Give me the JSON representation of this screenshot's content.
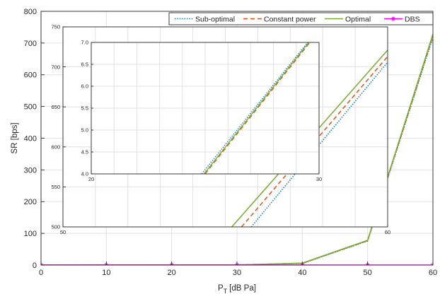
{
  "chart_data": [
    {
      "type": "line",
      "xlabel": "P",
      "xlabel_sub": "T",
      "xlabel_unit": "[dB Pa]",
      "ylabel": "SR [bps]",
      "xlim": [
        0,
        60
      ],
      "ylim": [
        0,
        800
      ],
      "xticks": [
        0,
        10,
        20,
        30,
        40,
        50,
        60
      ],
      "yticks": [
        0,
        100,
        200,
        300,
        400,
        500,
        600,
        700,
        800
      ],
      "grid": true,
      "legend_position": "top (single row)",
      "legend": [
        "Sub-optimal",
        "Constant power",
        "Optimal",
        "DBS"
      ],
      "series": [
        {
          "name": "Sub-optimal",
          "color": "#0072BD",
          "style": "dotted",
          "x": [
            0,
            10,
            20,
            30,
            40,
            50,
            60
          ],
          "y": [
            0,
            0.05,
            0.4,
            0.5,
            5,
            76,
            718
          ]
        },
        {
          "name": "Constant power",
          "color": "#D95319",
          "style": "dashed",
          "x": [
            0,
            10,
            20,
            30,
            40,
            50,
            60
          ],
          "y": [
            0,
            0.05,
            0.4,
            0.5,
            5.5,
            77,
            722
          ]
        },
        {
          "name": "Optimal",
          "color": "#77AC30",
          "style": "solid",
          "x": [
            0,
            10,
            20,
            30,
            40,
            50,
            60
          ],
          "y": [
            0,
            0.05,
            0.4,
            0.5,
            6,
            78,
            728
          ]
        },
        {
          "name": "DBS",
          "color": "#FF00FF",
          "style": "solid-marker",
          "x": [
            0,
            10,
            20,
            30,
            40,
            50,
            60
          ],
          "y": [
            0,
            0,
            0,
            0,
            0,
            0,
            0
          ]
        }
      ]
    },
    {
      "type": "line",
      "inset": "middle",
      "xlim": [
        50,
        60
      ],
      "ylim": [
        500,
        750
      ],
      "xticks": [
        50,
        60
      ],
      "yticks": [
        500,
        550,
        600,
        650,
        700,
        750
      ],
      "grid": true,
      "series": [
        {
          "name": "Sub-optimal",
          "color": "#0072BD",
          "style": "dotted",
          "x": [
            55.8,
            60
          ],
          "y": [
            500,
            706
          ]
        },
        {
          "name": "Constant power",
          "color": "#D95319",
          "style": "dashed",
          "x": [
            55.5,
            60
          ],
          "y": [
            500,
            713
          ]
        },
        {
          "name": "Optimal",
          "color": "#77AC30",
          "style": "solid",
          "x": [
            55.2,
            60
          ],
          "y": [
            500,
            721
          ]
        }
      ]
    },
    {
      "type": "line",
      "inset": "small",
      "xlim": [
        20,
        30
      ],
      "ylim": [
        4.0,
        7.0
      ],
      "xticks": [
        20,
        30
      ],
      "yticks": [
        4.0,
        4.5,
        5.0,
        5.5,
        6.0,
        6.5,
        7.0
      ],
      "ytick_labels": [
        "4.0",
        "4.5",
        "5.0",
        "5.5",
        "6.0",
        "6.5",
        "7.0"
      ],
      "grid": true,
      "series": [
        {
          "name": "Sub-optimal",
          "color": "#0072BD",
          "style": "dotted",
          "x": [
            24.85,
            29.5
          ],
          "y": [
            4.0,
            7.0
          ]
        },
        {
          "name": "Constant power",
          "color": "#D95319",
          "style": "dashed",
          "x": [
            25.0,
            29.6
          ],
          "y": [
            4.0,
            7.0
          ]
        },
        {
          "name": "Optimal",
          "color": "#77AC30",
          "style": "solid",
          "x": [
            24.95,
            29.55
          ],
          "y": [
            4.0,
            7.0
          ]
        }
      ]
    }
  ]
}
